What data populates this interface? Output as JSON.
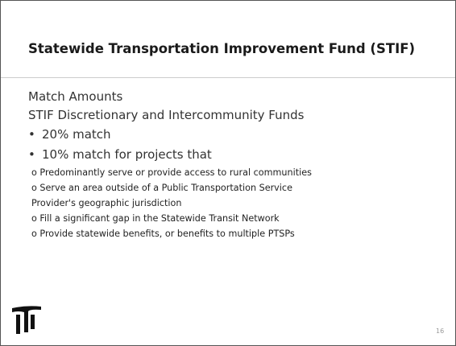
{
  "header": {
    "title": "Statewide Transportation Improvement Fund (STIF)"
  },
  "body": {
    "heading": "Match Amounts",
    "subheading": "STIF Discretionary and Intercommunity Funds",
    "bullets": [
      "20% match",
      "10% match for projects that"
    ],
    "subitems": [
      "o Predominantly serve or provide access to rural communities",
      "o Serve an area outside of a Public Transportation Service Provider's geographic jurisdiction",
      "o Fill a significant gap in the Statewide Transit Network",
      "o Provide statewide benefits, or benefits to multiple PTSPs"
    ]
  },
  "footer": {
    "page_number": "16"
  }
}
